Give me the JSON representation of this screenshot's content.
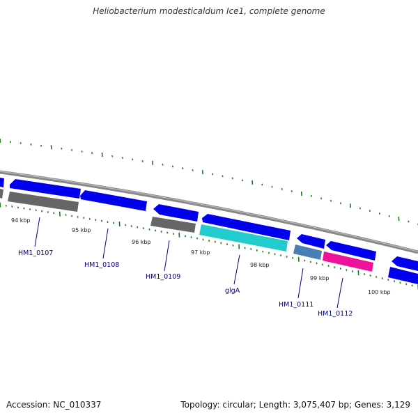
{
  "header": {
    "title": "Heliobacterium modesticaldum Ice1, complete genome"
  },
  "footer": {
    "accession": "Accession: NC_010337",
    "summary": "Topology: circular; Length: 3,075,407 bp; Genes: 3,129"
  },
  "colors": {
    "forward_gene": "#0000ee",
    "reverse_gene_gray": "#666666",
    "reverse_gene_cyan": "#22cccc",
    "reverse_gene_steel": "#4a7fb5",
    "reverse_gene_pink": "#ee1199",
    "backbone": "#888888",
    "ticks": "#1a7a1a",
    "label": "#000080"
  },
  "ruler": [
    {
      "label": "94 kbp"
    },
    {
      "label": "95 kbp"
    },
    {
      "label": "96 kbp"
    },
    {
      "label": "97 kbp"
    },
    {
      "label": "98 kbp"
    },
    {
      "label": "99 kbp"
    },
    {
      "label": "100 kbp"
    }
  ],
  "gene_labels": [
    {
      "label": "HM1_0107"
    },
    {
      "label": "HM1_0108"
    },
    {
      "label": "HM1_0109"
    },
    {
      "label": "glgA"
    },
    {
      "label": "HM1_0111"
    },
    {
      "label": "HM1_0112"
    }
  ]
}
